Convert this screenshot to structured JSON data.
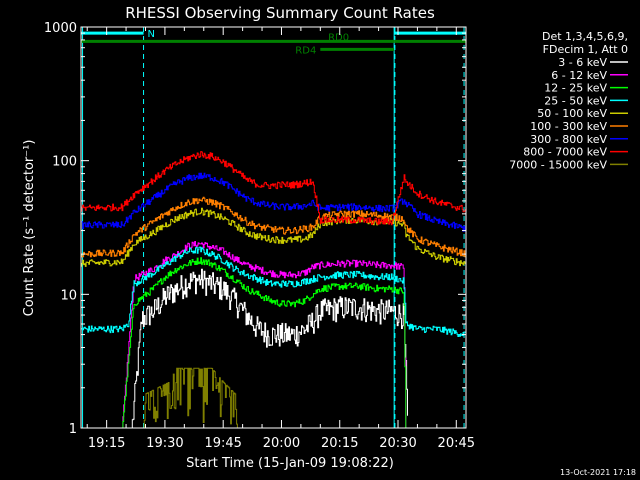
{
  "chart_data": {
    "type": "line",
    "title": "RHESSI Observing Summary Count Rates",
    "xlabel": "Start Time (15-Jan-09 19:08:22)",
    "ylabel": "Count Rate (s⁻¹ detector⁻¹)",
    "ylog": true,
    "ylim": [
      1,
      1000
    ],
    "xlim_minutes": [
      8.4,
      107.5
    ],
    "x_ticks": [
      {
        "t": 15,
        "label": "19:15"
      },
      {
        "t": 30,
        "label": "19:30"
      },
      {
        "t": 45,
        "label": "19:45"
      },
      {
        "t": 60,
        "label": "20:00"
      },
      {
        "t": 75,
        "label": "20:15"
      },
      {
        "t": 90,
        "label": "20:30"
      },
      {
        "t": 105,
        "label": "20:45"
      }
    ],
    "y_ticks": [
      {
        "v": 1,
        "label": "1"
      },
      {
        "v": 10,
        "label": "10"
      },
      {
        "v": 100,
        "label": "100"
      },
      {
        "v": 1000,
        "label": "1000"
      }
    ],
    "x_unit_note": "x in minutes after 19:00",
    "legend_header": [
      "Det 1,3,4,5,6,9,",
      "FDecim 1, Att 0"
    ],
    "legend_placement": "right outside",
    "series": [
      {
        "name": "3 - 6 keV",
        "color": "#ffffff",
        "x": [
          8.4,
          14,
          19,
          21.5,
          24,
          27,
          30,
          33,
          36,
          39,
          42,
          45,
          48,
          51,
          54,
          57,
          60,
          63,
          66,
          67.5,
          70,
          75,
          80,
          85,
          88.5,
          91.5,
          92.5
        ],
        "y": [
          1,
          1,
          1,
          1,
          6.5,
          7.5,
          9.5,
          11,
          12.5,
          13,
          12,
          11,
          9,
          7,
          5.5,
          5,
          5,
          5,
          5.5,
          6,
          7.5,
          8,
          8,
          7.5,
          7.5,
          7,
          1
        ]
      },
      {
        "name": "6 - 12 keV",
        "color": "#ff00ff",
        "x": [
          8.4,
          19,
          22,
          27,
          30,
          33,
          36,
          39,
          42,
          45,
          48,
          51,
          54,
          57,
          60,
          63,
          66,
          68,
          70,
          75,
          80,
          85,
          88.5,
          91.5,
          92,
          95
        ],
        "y": [
          1,
          1,
          13,
          15.5,
          18,
          20,
          23,
          24,
          22.5,
          21,
          18.5,
          16.5,
          15.5,
          14.5,
          14,
          14,
          14.5,
          16,
          16.5,
          17,
          17,
          16.5,
          16.5,
          16,
          1,
          1
        ]
      },
      {
        "name": "12 - 25 keV",
        "color": "#00ff00",
        "x": [
          8.4,
          19,
          22,
          27,
          30,
          33,
          36,
          39,
          42,
          45,
          48,
          51,
          54,
          57,
          60,
          63,
          66,
          68,
          70,
          75,
          80,
          85,
          88.5,
          91.5,
          92,
          95
        ],
        "y": [
          1,
          1,
          8.5,
          11,
          13.5,
          15.5,
          17,
          18,
          17,
          15,
          13,
          11,
          10,
          9,
          8.5,
          8.5,
          9,
          10,
          11,
          11.5,
          11.5,
          11,
          11,
          10.5,
          1,
          1
        ]
      },
      {
        "name": "25 - 50 keV",
        "color": "#00ffff",
        "x": [
          8.4,
          19,
          20.5,
          22,
          27,
          30,
          33,
          36,
          39,
          42,
          45,
          48,
          51,
          54,
          57,
          60,
          63,
          66,
          68,
          70,
          75,
          80,
          85,
          88.5,
          91.5,
          92,
          95,
          100,
          107.5
        ],
        "y": [
          5.5,
          5.5,
          6,
          12,
          14.5,
          16.5,
          19,
          21,
          21.5,
          20,
          18,
          15.5,
          14,
          13,
          12,
          12,
          12,
          12.5,
          13,
          13.5,
          14,
          14,
          13.5,
          13.5,
          12.5,
          6,
          5.5,
          5.5,
          5
        ]
      },
      {
        "name": "50 - 100 keV",
        "color": "#cccc00",
        "x": [
          8.4,
          19,
          22,
          27,
          30,
          33,
          36,
          39,
          42,
          45,
          48,
          51,
          54,
          57,
          60,
          63,
          66,
          68,
          70,
          75,
          80,
          85,
          88.5,
          91.5,
          92,
          95,
          100,
          107.5
        ],
        "y": [
          17,
          17.5,
          24,
          29,
          33,
          37,
          40,
          42,
          40,
          37,
          33,
          29,
          27,
          26,
          25.5,
          25.5,
          26,
          28,
          34,
          36,
          36,
          35,
          35,
          33,
          28,
          22,
          19,
          17
        ]
      },
      {
        "name": "100 - 300 keV",
        "color": "#ff7f00",
        "x": [
          8.4,
          19,
          22,
          27,
          30,
          33,
          36,
          39,
          42,
          45,
          48,
          51,
          54,
          57,
          60,
          63,
          66,
          68,
          70,
          75,
          80,
          85,
          88.5,
          91.5,
          92,
          95,
          100,
          107.5
        ],
        "y": [
          20,
          20.5,
          28,
          35,
          40,
          45,
          49,
          51,
          49,
          45,
          40,
          35,
          32,
          31,
          30,
          30,
          31,
          32,
          38,
          40,
          40,
          39,
          38,
          37,
          32,
          26,
          23,
          20
        ]
      },
      {
        "name": "300 - 800 keV",
        "color": "#0000ff",
        "x": [
          8.4,
          19,
          22,
          27,
          30,
          33,
          36,
          39,
          42,
          45,
          48,
          51,
          54,
          57,
          60,
          63,
          66,
          68,
          70,
          75,
          80,
          85,
          88.5,
          91.5,
          92,
          95,
          100,
          107.5
        ],
        "y": [
          33,
          33,
          41,
          52,
          60,
          68,
          74,
          77,
          75,
          69,
          60,
          52,
          48,
          46,
          45,
          45,
          46,
          48,
          44,
          45,
          45,
          44,
          44,
          51,
          48,
          40,
          35,
          31
        ]
      },
      {
        "name": "800 - 7000 keV",
        "color": "#ff0000",
        "x": [
          8.4,
          19,
          22,
          27,
          30,
          33,
          36,
          39,
          42,
          45,
          48,
          51,
          54,
          57,
          60,
          63,
          66,
          68,
          70,
          75,
          80,
          85,
          88.5,
          91.5,
          92,
          95,
          100,
          107.5
        ],
        "y": [
          44,
          45,
          56,
          72,
          84,
          95,
          105,
          112,
          108,
          98,
          85,
          72,
          66,
          65,
          66,
          66,
          68,
          70,
          36,
          36,
          36,
          35,
          35,
          75,
          70,
          57,
          49,
          43
        ]
      },
      {
        "name": "7000 - 15000 keV",
        "color": "#808000",
        "x": [
          8.4,
          24.5,
          25,
          31,
          33,
          36,
          39,
          42,
          45,
          48,
          48.5,
          107.5
        ],
        "y": [
          1,
          1,
          1.8,
          2.2,
          2.8,
          2.8,
          2.8,
          2.8,
          2.2,
          1.8,
          1,
          1
        ]
      }
    ],
    "annotations": [
      {
        "label": "N",
        "t_start": 8.4,
        "t_end": 24.5,
        "y": 900,
        "color": "#00ffff"
      },
      {
        "label": "RD0",
        "t_start": 8.4,
        "t_end": 89,
        "y": 780,
        "color": "#008000"
      },
      {
        "label": "RD4",
        "t_start": 70,
        "t_end": 89,
        "y": 680,
        "color": "#008000"
      },
      {
        "label": "",
        "t_start": 89,
        "t_end": 107.5,
        "y": 900,
        "color": "#00ffff"
      },
      {
        "label": "",
        "t_start": 89,
        "t_end": 107.5,
        "y": 780,
        "color": "#008000"
      }
    ],
    "vertical_lines": [
      {
        "t": 8.8,
        "style": "solid",
        "color": "#00ffff"
      },
      {
        "t": 24.5,
        "style": "dashed",
        "color": "#00ffff"
      },
      {
        "t": 89,
        "style": "solid",
        "color": "#00ffff"
      },
      {
        "t": 89.2,
        "style": "dashed",
        "color": "#00ffff"
      },
      {
        "t": 107,
        "style": "dashed",
        "color": "#00ffff"
      }
    ],
    "grid": false
  },
  "footer_timestamp": "13-Oct-2021 17:18",
  "colors": {
    "background": "#000000",
    "axes": "#ffffff"
  }
}
